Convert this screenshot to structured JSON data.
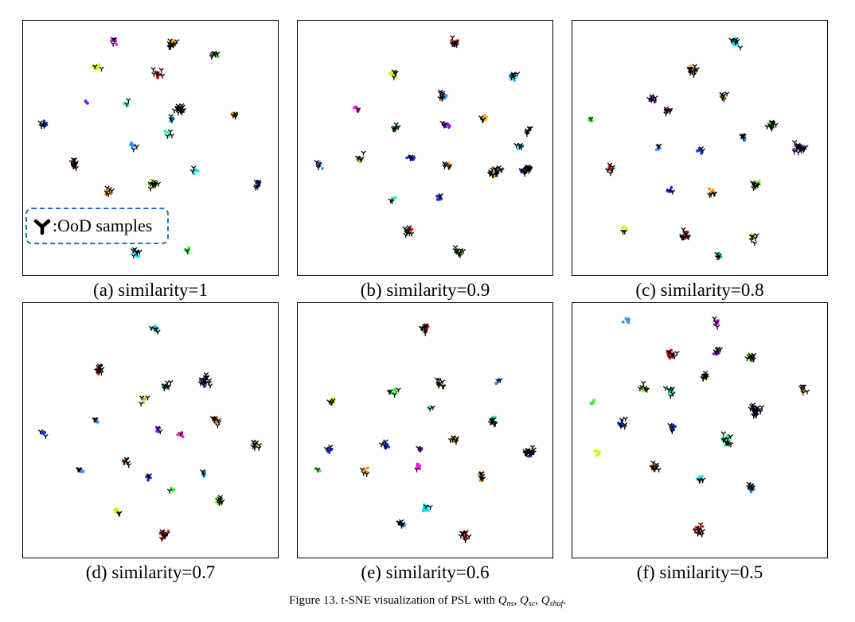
{
  "figure": {
    "caption_prefix": "Figure 13. t-SNE visualization of PSL with ",
    "q_symbol": "Q",
    "subscripts": [
      "ns",
      "sc",
      "shuf"
    ],
    "separator": ", ",
    "caption_suffix": "."
  },
  "legend": {
    "label": ":OoD samples",
    "marker_color": "#000000"
  },
  "colors": {
    "red": "#ff1a1a",
    "orange": "#ff8c00",
    "amber": "#ffb000",
    "yellow": "#ffd700",
    "lime": "#c8ff00",
    "green": "#33ee33",
    "lgreen": "#88ff33",
    "mint": "#33ff99",
    "cyan": "#11e0ff",
    "sky": "#3399ff",
    "blue": "#1133ff",
    "indigo": "#3311cc",
    "violet": "#8811ff",
    "magenta": "#ff11ff",
    "ood": "#000000"
  },
  "chart_data": [
    {
      "type": "scatter",
      "title": "(a) similarity=1",
      "xlim": [
        0,
        100
      ],
      "ylim": [
        0,
        100
      ],
      "clusters": [
        {
          "x": 35,
          "y": 94,
          "color": "magenta",
          "n": 6,
          "ood": 3
        },
        {
          "x": 59,
          "y": 93,
          "color": "amber",
          "n": 8,
          "ood": 10
        },
        {
          "x": 77,
          "y": 88,
          "color": "green",
          "n": 6,
          "ood": 6
        },
        {
          "x": 28,
          "y": 83,
          "color": "lime",
          "n": 12,
          "ood": 2
        },
        {
          "x": 53,
          "y": 80,
          "color": "red",
          "n": 8,
          "ood": 6
        },
        {
          "x": 24,
          "y": 68,
          "color": "violet",
          "n": 4,
          "ood": 0
        },
        {
          "x": 40,
          "y": 68,
          "color": "mint",
          "n": 4,
          "ood": 2
        },
        {
          "x": 62,
          "y": 66,
          "color": "magenta",
          "n": 5,
          "ood": 16
        },
        {
          "x": 84,
          "y": 64,
          "color": "amber",
          "n": 6,
          "ood": 4
        },
        {
          "x": 59,
          "y": 62,
          "color": "cyan",
          "n": 6,
          "ood": 3
        },
        {
          "x": 6,
          "y": 60,
          "color": "blue",
          "n": 7,
          "ood": 5
        },
        {
          "x": 57,
          "y": 56,
          "color": "mint",
          "n": 5,
          "ood": 3
        },
        {
          "x": 43,
          "y": 51,
          "color": "sky",
          "n": 8,
          "ood": 2
        },
        {
          "x": 19,
          "y": 43,
          "color": "red",
          "n": 10,
          "ood": 10
        },
        {
          "x": 68,
          "y": 41,
          "color": "cyan",
          "n": 6,
          "ood": 2
        },
        {
          "x": 51,
          "y": 35,
          "color": "lgreen",
          "n": 8,
          "ood": 10
        },
        {
          "x": 94,
          "y": 35,
          "color": "blue",
          "n": 7,
          "ood": 6
        },
        {
          "x": 33,
          "y": 32,
          "color": "orange",
          "n": 7,
          "ood": 5
        },
        {
          "x": 65,
          "y": 8,
          "color": "green",
          "n": 6,
          "ood": 1
        },
        {
          "x": 44,
          "y": 7,
          "color": "cyan",
          "n": 10,
          "ood": 6
        }
      ]
    },
    {
      "type": "scatter",
      "title": "(b) similarity=0.9",
      "xlim": [
        0,
        100
      ],
      "ylim": [
        0,
        100
      ],
      "clusters": [
        {
          "x": 62,
          "y": 93,
          "color": "red",
          "n": 12,
          "ood": 8
        },
        {
          "x": 37,
          "y": 80,
          "color": "lime",
          "n": 8,
          "ood": 4
        },
        {
          "x": 86,
          "y": 79,
          "color": "cyan",
          "n": 10,
          "ood": 6
        },
        {
          "x": 57,
          "y": 71,
          "color": "sky",
          "n": 6,
          "ood": 8
        },
        {
          "x": 22,
          "y": 66,
          "color": "magenta",
          "n": 6,
          "ood": 1
        },
        {
          "x": 74,
          "y": 62,
          "color": "amber",
          "n": 6,
          "ood": 3
        },
        {
          "x": 38,
          "y": 58,
          "color": "green",
          "n": 8,
          "ood": 6
        },
        {
          "x": 59,
          "y": 59,
          "color": "violet",
          "n": 7,
          "ood": 3
        },
        {
          "x": 92,
          "y": 57,
          "color": "green",
          "n": 6,
          "ood": 6
        },
        {
          "x": 89,
          "y": 50,
          "color": "cyan",
          "n": 5,
          "ood": 4
        },
        {
          "x": 23,
          "y": 46,
          "color": "lgreen",
          "n": 6,
          "ood": 5
        },
        {
          "x": 44,
          "y": 46,
          "color": "blue",
          "n": 6,
          "ood": 3
        },
        {
          "x": 6,
          "y": 43,
          "color": "sky",
          "n": 6,
          "ood": 4
        },
        {
          "x": 60,
          "y": 43,
          "color": "orange",
          "n": 6,
          "ood": 5
        },
        {
          "x": 79,
          "y": 40,
          "color": "amber",
          "n": 7,
          "ood": 16
        },
        {
          "x": 91,
          "y": 41,
          "color": "violet",
          "n": 8,
          "ood": 14
        },
        {
          "x": 37,
          "y": 29,
          "color": "mint",
          "n": 5,
          "ood": 2
        },
        {
          "x": 56,
          "y": 29,
          "color": "blue",
          "n": 6,
          "ood": 2
        },
        {
          "x": 43,
          "y": 16,
          "color": "red",
          "n": 8,
          "ood": 8
        },
        {
          "x": 64,
          "y": 7,
          "color": "lgreen",
          "n": 10,
          "ood": 10
        }
      ]
    },
    {
      "type": "scatter",
      "title": "(c) similarity=0.8",
      "xlim": [
        0,
        100
      ],
      "ylim": [
        0,
        100
      ],
      "clusters": [
        {
          "x": 65,
          "y": 93,
          "color": "cyan",
          "n": 10,
          "ood": 8
        },
        {
          "x": 47,
          "y": 82,
          "color": "amber",
          "n": 6,
          "ood": 12
        },
        {
          "x": 31,
          "y": 70,
          "color": "violet",
          "n": 6,
          "ood": 6
        },
        {
          "x": 60,
          "y": 71,
          "color": "amber",
          "n": 4,
          "ood": 6
        },
        {
          "x": 37,
          "y": 65,
          "color": "magenta",
          "n": 4,
          "ood": 6
        },
        {
          "x": 5,
          "y": 62,
          "color": "green",
          "n": 5,
          "ood": 1
        },
        {
          "x": 79,
          "y": 59,
          "color": "green",
          "n": 8,
          "ood": 12
        },
        {
          "x": 68,
          "y": 54,
          "color": "sky",
          "n": 6,
          "ood": 4
        },
        {
          "x": 91,
          "y": 50,
          "color": "violet",
          "n": 6,
          "ood": 18
        },
        {
          "x": 33,
          "y": 50,
          "color": "sky",
          "n": 6,
          "ood": 2
        },
        {
          "x": 50,
          "y": 49,
          "color": "blue",
          "n": 6,
          "ood": 2
        },
        {
          "x": 13,
          "y": 42,
          "color": "red",
          "n": 8,
          "ood": 6
        },
        {
          "x": 73,
          "y": 35,
          "color": "lgreen",
          "n": 6,
          "ood": 8
        },
        {
          "x": 38,
          "y": 33,
          "color": "blue",
          "n": 6,
          "ood": 2
        },
        {
          "x": 55,
          "y": 32,
          "color": "orange",
          "n": 6,
          "ood": 4
        },
        {
          "x": 19,
          "y": 17,
          "color": "lime",
          "n": 6,
          "ood": 2
        },
        {
          "x": 44,
          "y": 14,
          "color": "red",
          "n": 10,
          "ood": 10
        },
        {
          "x": 72,
          "y": 13,
          "color": "lime",
          "n": 6,
          "ood": 6
        },
        {
          "x": 58,
          "y": 6,
          "color": "mint",
          "n": 5,
          "ood": 4
        }
      ]
    },
    {
      "type": "scatter",
      "title": "(d) similarity=0.7",
      "xlim": [
        0,
        100
      ],
      "ylim": [
        0,
        100
      ],
      "clusters": [
        {
          "x": 52,
          "y": 92,
          "color": "cyan",
          "n": 10,
          "ood": 4
        },
        {
          "x": 29,
          "y": 75,
          "color": "red",
          "n": 8,
          "ood": 12
        },
        {
          "x": 72,
          "y": 70,
          "color": "violet",
          "n": 8,
          "ood": 16
        },
        {
          "x": 56,
          "y": 68,
          "color": "mint",
          "n": 6,
          "ood": 8
        },
        {
          "x": 47,
          "y": 62,
          "color": "amber",
          "n": 4,
          "ood": 3
        },
        {
          "x": 28,
          "y": 54,
          "color": "sky",
          "n": 5,
          "ood": 3
        },
        {
          "x": 77,
          "y": 54,
          "color": "orange",
          "n": 6,
          "ood": 8
        },
        {
          "x": 53,
          "y": 50,
          "color": "violet",
          "n": 5,
          "ood": 2
        },
        {
          "x": 62,
          "y": 48,
          "color": "magenta",
          "n": 6,
          "ood": 1
        },
        {
          "x": 6,
          "y": 49,
          "color": "blue",
          "n": 5,
          "ood": 2
        },
        {
          "x": 93,
          "y": 44,
          "color": "lgreen",
          "n": 5,
          "ood": 8
        },
        {
          "x": 40,
          "y": 37,
          "color": "orange",
          "n": 6,
          "ood": 6
        },
        {
          "x": 21,
          "y": 33,
          "color": "sky",
          "n": 5,
          "ood": 3
        },
        {
          "x": 49,
          "y": 31,
          "color": "blue",
          "n": 5,
          "ood": 2
        },
        {
          "x": 72,
          "y": 32,
          "color": "cyan",
          "n": 5,
          "ood": 3
        },
        {
          "x": 59,
          "y": 26,
          "color": "green",
          "n": 4,
          "ood": 1
        },
        {
          "x": 78,
          "y": 21,
          "color": "lgreen",
          "n": 6,
          "ood": 8
        },
        {
          "x": 36,
          "y": 16,
          "color": "lime",
          "n": 6,
          "ood": 2
        },
        {
          "x": 56,
          "y": 7,
          "color": "red",
          "n": 8,
          "ood": 8
        }
      ]
    },
    {
      "type": "scatter",
      "title": "(e) similarity=0.6",
      "xlim": [
        0,
        100
      ],
      "ylim": [
        0,
        100
      ],
      "clusters": [
        {
          "x": 50,
          "y": 92,
          "color": "red",
          "n": 10,
          "ood": 8
        },
        {
          "x": 56,
          "y": 69,
          "color": "lgreen",
          "n": 6,
          "ood": 8
        },
        {
          "x": 80,
          "y": 70,
          "color": "sky",
          "n": 5,
          "ood": 2
        },
        {
          "x": 37,
          "y": 66,
          "color": "green",
          "n": 6,
          "ood": 4
        },
        {
          "x": 12,
          "y": 62,
          "color": "lime",
          "n": 6,
          "ood": 4
        },
        {
          "x": 52,
          "y": 59,
          "color": "mint",
          "n": 5,
          "ood": 2
        },
        {
          "x": 78,
          "y": 54,
          "color": "mint",
          "n": 6,
          "ood": 10
        },
        {
          "x": 62,
          "y": 46,
          "color": "amber",
          "n": 5,
          "ood": 6
        },
        {
          "x": 93,
          "y": 41,
          "color": "violet",
          "n": 8,
          "ood": 18
        },
        {
          "x": 34,
          "y": 44,
          "color": "blue",
          "n": 6,
          "ood": 4
        },
        {
          "x": 11,
          "y": 42,
          "color": "blue",
          "n": 5,
          "ood": 3
        },
        {
          "x": 48,
          "y": 42,
          "color": "violet",
          "n": 5,
          "ood": 2
        },
        {
          "x": 47,
          "y": 35,
          "color": "magenta",
          "n": 5,
          "ood": 1
        },
        {
          "x": 6,
          "y": 34,
          "color": "green",
          "n": 5,
          "ood": 1
        },
        {
          "x": 26,
          "y": 33,
          "color": "orange",
          "n": 5,
          "ood": 3
        },
        {
          "x": 73,
          "y": 31,
          "color": "orange",
          "n": 6,
          "ood": 6
        },
        {
          "x": 50,
          "y": 18,
          "color": "cyan",
          "n": 12,
          "ood": 2
        },
        {
          "x": 40,
          "y": 11,
          "color": "sky",
          "n": 5,
          "ood": 6
        },
        {
          "x": 66,
          "y": 7,
          "color": "red",
          "n": 8,
          "ood": 8
        }
      ]
    },
    {
      "type": "scatter",
      "title": "(f) similarity=0.5",
      "xlim": [
        0,
        100
      ],
      "ylim": [
        0,
        100
      ],
      "clusters": [
        {
          "x": 20,
          "y": 95,
          "color": "sky",
          "n": 8,
          "ood": 0
        },
        {
          "x": 57,
          "y": 94,
          "color": "magenta",
          "n": 6,
          "ood": 4
        },
        {
          "x": 38,
          "y": 81,
          "color": "red",
          "n": 20,
          "ood": 8
        },
        {
          "x": 71,
          "y": 80,
          "color": "lgreen",
          "n": 8,
          "ood": 10
        },
        {
          "x": 57,
          "y": 82,
          "color": "violet",
          "n": 4,
          "ood": 6
        },
        {
          "x": 52,
          "y": 72,
          "color": "amber",
          "n": 6,
          "ood": 10
        },
        {
          "x": 93,
          "y": 67,
          "color": "amber",
          "n": 4,
          "ood": 6
        },
        {
          "x": 27,
          "y": 67,
          "color": "lgreen",
          "n": 8,
          "ood": 6
        },
        {
          "x": 38,
          "y": 66,
          "color": "mint",
          "n": 8,
          "ood": 6
        },
        {
          "x": 73,
          "y": 58,
          "color": "violet",
          "n": 10,
          "ood": 22
        },
        {
          "x": 6,
          "y": 61,
          "color": "green",
          "n": 6,
          "ood": 0
        },
        {
          "x": 18,
          "y": 53,
          "color": "blue",
          "n": 6,
          "ood": 6
        },
        {
          "x": 39,
          "y": 51,
          "color": "blue",
          "n": 6,
          "ood": 4
        },
        {
          "x": 61,
          "y": 46,
          "color": "mint",
          "n": 14,
          "ood": 10
        },
        {
          "x": 8,
          "y": 41,
          "color": "lime",
          "n": 6,
          "ood": 0
        },
        {
          "x": 32,
          "y": 35,
          "color": "orange",
          "n": 8,
          "ood": 8
        },
        {
          "x": 50,
          "y": 30,
          "color": "cyan",
          "n": 10,
          "ood": 4
        },
        {
          "x": 71,
          "y": 26,
          "color": "sky",
          "n": 6,
          "ood": 8
        },
        {
          "x": 50,
          "y": 9,
          "color": "red",
          "n": 10,
          "ood": 10
        }
      ]
    }
  ]
}
